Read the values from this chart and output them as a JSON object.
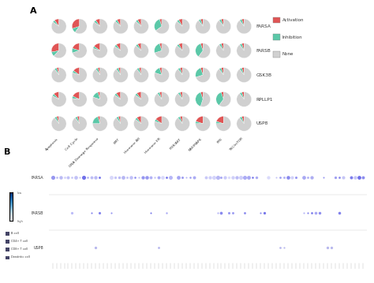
{
  "panel_A_label": "A",
  "panel_B_label": "B",
  "rows": [
    "FARSA",
    "FARSB",
    "GSK3B",
    "RPLLP1",
    "USP8"
  ],
  "cols": [
    "Apoptosis",
    "Cell Cycle",
    "DNA Damage Response",
    "EMT",
    "Hormone AR",
    "Hormone ER",
    "PI3K/AKT",
    "RAS/MAPK",
    "RTK",
    "TSC/mTOR"
  ],
  "activation_color": "#e05555",
  "inhibition_color": "#5bc8a8",
  "none_color": "#d0d0d0",
  "pie_data": {
    "FARSA": {
      "Apoptosis": [
        0.1,
        0.05,
        0.85
      ],
      "Cell Cycle": [
        0.3,
        0.1,
        0.6
      ],
      "DNA Damage Response": [
        0.1,
        0.05,
        0.85
      ],
      "EMT": [
        0.08,
        0.05,
        0.87
      ],
      "Hormone AR": [
        0.08,
        0.05,
        0.87
      ],
      "Hormone ER": [
        0.05,
        0.3,
        0.65
      ],
      "PI3K/AKT": [
        0.08,
        0.05,
        0.87
      ],
      "RAS/MAPK": [
        0.05,
        0.05,
        0.9
      ],
      "RTK": [
        0.05,
        0.05,
        0.9
      ],
      "TSC/mTOR": [
        0.05,
        0.05,
        0.9
      ]
    },
    "FARSB": {
      "Apoptosis": [
        0.28,
        0.1,
        0.62
      ],
      "Cell Cycle": [
        0.2,
        0.1,
        0.7
      ],
      "DNA Damage Response": [
        0.15,
        0.05,
        0.8
      ],
      "EMT": [
        0.1,
        0.05,
        0.85
      ],
      "Hormone AR": [
        0.08,
        0.05,
        0.87
      ],
      "Hormone ER": [
        0.05,
        0.25,
        0.7
      ],
      "PI3K/AKT": [
        0.08,
        0.05,
        0.87
      ],
      "RAS/MAPK": [
        0.05,
        0.35,
        0.6
      ],
      "RTK": [
        0.05,
        0.05,
        0.9
      ],
      "TSC/mTOR": [
        0.05,
        0.05,
        0.9
      ]
    },
    "GSK3B": {
      "Apoptosis": [
        0.05,
        0.05,
        0.9
      ],
      "Cell Cycle": [
        0.15,
        0.05,
        0.8
      ],
      "DNA Damage Response": [
        0.05,
        0.05,
        0.9
      ],
      "EMT": [
        0.05,
        0.05,
        0.9
      ],
      "Hormone AR": [
        0.05,
        0.05,
        0.9
      ],
      "Hormone ER": [
        0.05,
        0.15,
        0.8
      ],
      "PI3K/AKT": [
        0.05,
        0.05,
        0.9
      ],
      "RAS/MAPK": [
        0.05,
        0.25,
        0.7
      ],
      "RTK": [
        0.05,
        0.05,
        0.9
      ],
      "TSC/mTOR": [
        0.05,
        0.05,
        0.9
      ]
    },
    "RPLLP1": {
      "Apoptosis": [
        0.12,
        0.05,
        0.83
      ],
      "Cell Cycle": [
        0.18,
        0.05,
        0.77
      ],
      "DNA Damage Response": [
        0.05,
        0.15,
        0.8
      ],
      "EMT": [
        0.1,
        0.05,
        0.85
      ],
      "Hormone AR": [
        0.1,
        0.05,
        0.85
      ],
      "Hormone ER": [
        0.05,
        0.05,
        0.9
      ],
      "PI3K/AKT": [
        0.05,
        0.05,
        0.9
      ],
      "RAS/MAPK": [
        0.05,
        0.4,
        0.55
      ],
      "RTK": [
        0.05,
        0.35,
        0.6
      ],
      "TSC/mTOR": [
        0.05,
        0.05,
        0.9
      ]
    },
    "USP8": {
      "Apoptosis": [
        0.05,
        0.05,
        0.9
      ],
      "Cell Cycle": [
        0.05,
        0.05,
        0.9
      ],
      "DNA Damage Response": [
        0.05,
        0.2,
        0.75
      ],
      "EMT": [
        0.05,
        0.05,
        0.9
      ],
      "Hormone AR": [
        0.1,
        0.05,
        0.85
      ],
      "Hormone ER": [
        0.15,
        0.05,
        0.8
      ],
      "PI3K/AKT": [
        0.05,
        0.05,
        0.9
      ],
      "RAS/MAPK": [
        0.2,
        0.05,
        0.75
      ],
      "RTK": [
        0.2,
        0.05,
        0.75
      ],
      "TSC/mTOR": [
        0.05,
        0.05,
        0.9
      ]
    }
  },
  "dot_rows": [
    "FARSA",
    "FARSB",
    "USP8"
  ],
  "n_dot_cols": 80,
  "background_color": "#ffffff",
  "immune_cells": [
    "B cell",
    "CD4+ T cell",
    "CD8+ T cell",
    "Dendritic cell"
  ]
}
